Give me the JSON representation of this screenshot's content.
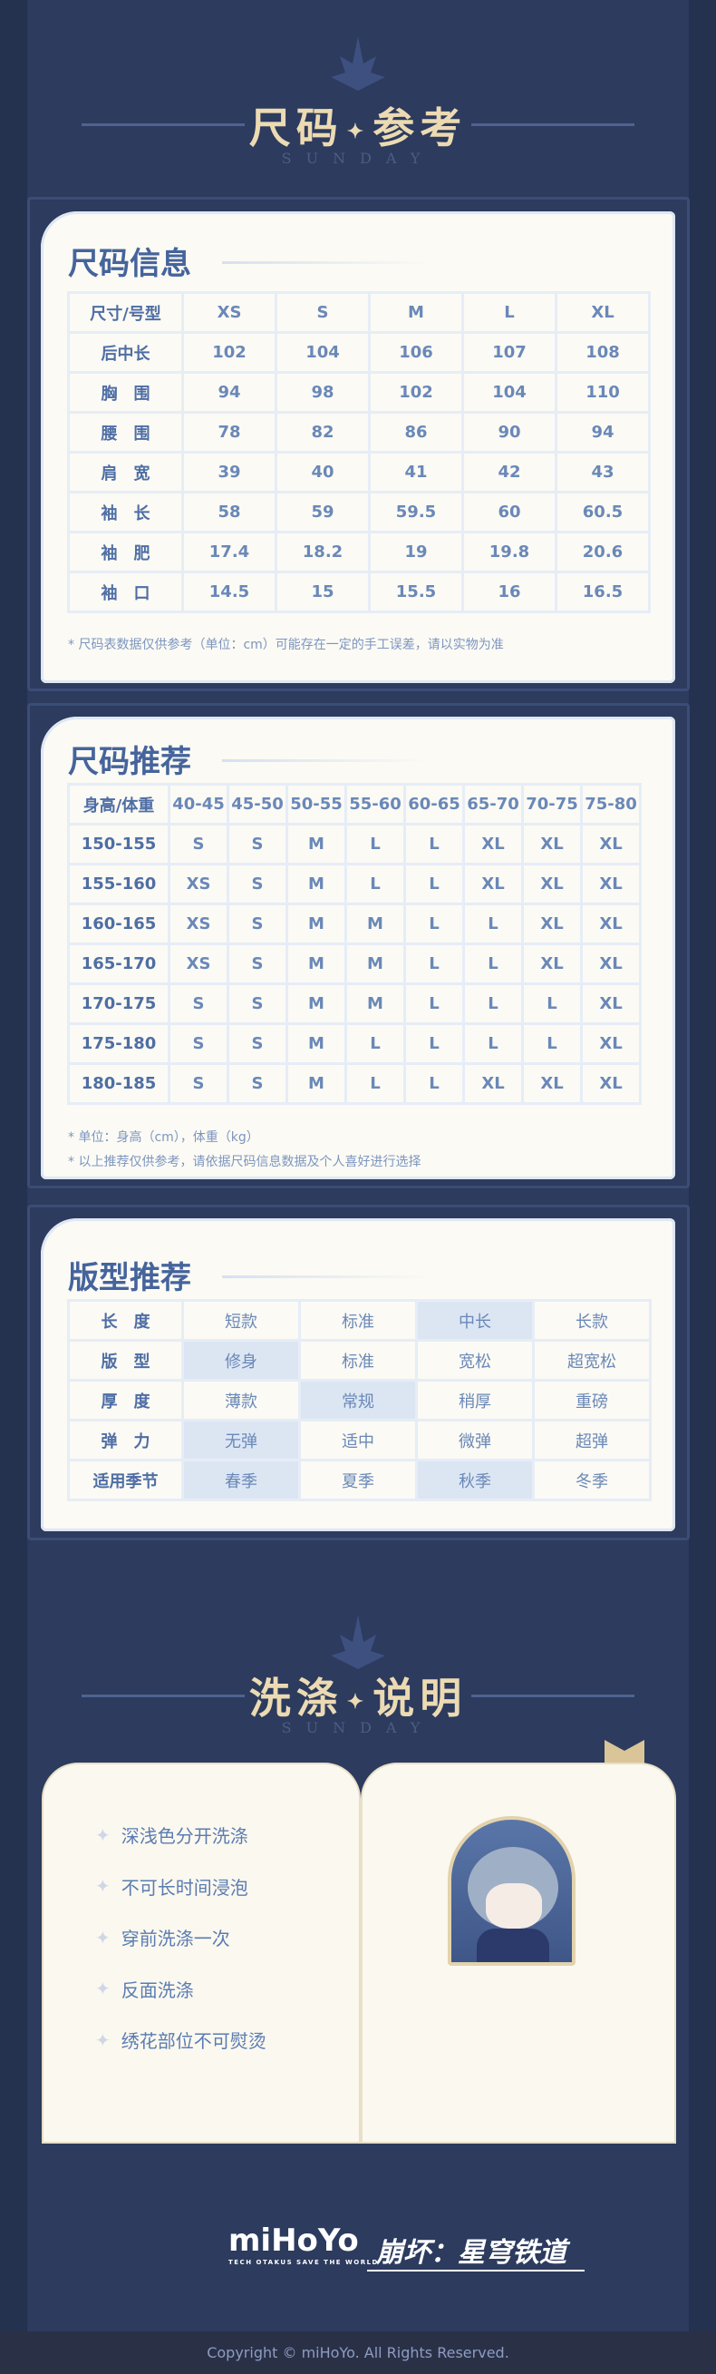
{
  "header": {
    "title_left": "尺码",
    "title_right": "参考",
    "subtitle": "SUNDAY"
  },
  "size_info": {
    "title": "尺码信息",
    "columns": [
      "尺寸/号型",
      "XS",
      "S",
      "M",
      "L",
      "XL"
    ],
    "rows": [
      [
        "后中长",
        "102",
        "104",
        "106",
        "107",
        "108"
      ],
      [
        "胸　围",
        "94",
        "98",
        "102",
        "104",
        "110"
      ],
      [
        "腰　围",
        "78",
        "82",
        "86",
        "90",
        "94"
      ],
      [
        "肩　宽",
        "39",
        "40",
        "41",
        "42",
        "43"
      ],
      [
        "袖　长",
        "58",
        "59",
        "59.5",
        "60",
        "60.5"
      ],
      [
        "袖　肥",
        "17.4",
        "18.2",
        "19",
        "19.8",
        "20.6"
      ],
      [
        "袖　口",
        "14.5",
        "15",
        "15.5",
        "16",
        "16.5"
      ]
    ],
    "note": "* 尺码表数据仅供参考（单位：cm）可能存在一定的手工误差，请以实物为准"
  },
  "size_recommend": {
    "title": "尺码推荐",
    "columns": [
      "身高/体重",
      "40-45",
      "45-50",
      "50-55",
      "55-60",
      "60-65",
      "65-70",
      "70-75",
      "75-80"
    ],
    "rows": [
      [
        "150-155",
        "S",
        "S",
        "M",
        "L",
        "L",
        "XL",
        "XL",
        "XL"
      ],
      [
        "155-160",
        "XS",
        "S",
        "M",
        "L",
        "L",
        "XL",
        "XL",
        "XL"
      ],
      [
        "160-165",
        "XS",
        "S",
        "M",
        "M",
        "L",
        "L",
        "XL",
        "XL"
      ],
      [
        "165-170",
        "XS",
        "S",
        "M",
        "M",
        "L",
        "L",
        "XL",
        "XL"
      ],
      [
        "170-175",
        "S",
        "S",
        "M",
        "M",
        "L",
        "L",
        "L",
        "XL"
      ],
      [
        "175-180",
        "S",
        "S",
        "M",
        "L",
        "L",
        "L",
        "L",
        "XL"
      ],
      [
        "180-185",
        "S",
        "S",
        "M",
        "L",
        "L",
        "XL",
        "XL",
        "XL"
      ]
    ],
    "notes": [
      "* 单位：身高（cm），体重（kg）",
      "* 以上推荐仅供参考，请依据尺码信息数据及个人喜好进行选择"
    ]
  },
  "fit_recommend": {
    "title": "版型推荐",
    "rows": [
      {
        "label": "长　度",
        "options": [
          "短款",
          "标准",
          "中长",
          "长款"
        ],
        "selected": [
          2
        ]
      },
      {
        "label": "版　型",
        "options": [
          "修身",
          "标准",
          "宽松",
          "超宽松"
        ],
        "selected": [
          0
        ]
      },
      {
        "label": "厚　度",
        "options": [
          "薄款",
          "常规",
          "稍厚",
          "重磅"
        ],
        "selected": [
          1
        ]
      },
      {
        "label": "弹　力",
        "options": [
          "无弹",
          "适中",
          "微弹",
          "超弹"
        ],
        "selected": [
          0
        ]
      },
      {
        "label": "适用季节",
        "options": [
          "春季",
          "夏季",
          "秋季",
          "冬季"
        ],
        "selected": [
          0,
          2
        ]
      }
    ],
    "highlight_color": "#dce6f3"
  },
  "washing": {
    "title_left": "洗涤",
    "title_right": "说明",
    "subtitle": "SUNDAY",
    "items": [
      "深浅色分开洗涤",
      "不可长时间浸泡",
      "穿前洗涤一次",
      "反面洗涤",
      "绣花部位不可熨烫"
    ]
  },
  "logos": {
    "mihoyo": "miHoYo",
    "mihoyo_tagline": "TECH OTAKUS SAVE THE WORLD",
    "game": "崩坏：星穹铁道"
  },
  "footer": {
    "copyright": "Copyright © miHoYo. All Rights Reserved."
  },
  "colors": {
    "background": "#2c3b5e",
    "card": "#fbfaf4",
    "title_gold": "#ecdab2",
    "table_text": "#6a88b8"
  }
}
